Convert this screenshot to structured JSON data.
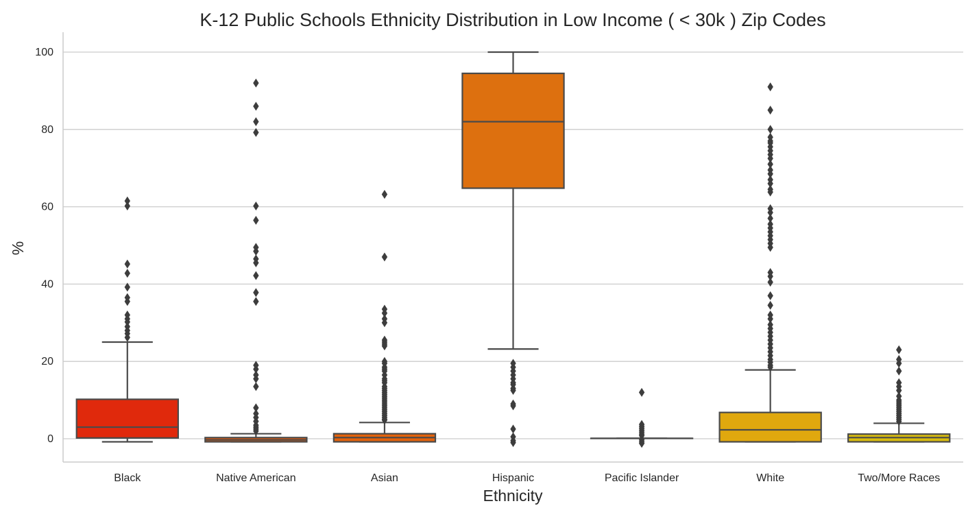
{
  "chart_data": {
    "type": "box",
    "title": "K-12 Public Schools Ethnicity Distribution in Low Income ( < 30k ) Zip Codes",
    "xlabel": "Ethnicity",
    "ylabel": "%",
    "ylim": [
      -6,
      105
    ],
    "yticks": [
      0,
      20,
      40,
      60,
      80,
      100
    ],
    "grid": "horizontal",
    "categories": [
      "Black",
      "Native American",
      "Asian",
      "Hispanic",
      "Pacific Islander",
      "White",
      "Two/More Races"
    ],
    "colors": [
      "#e0290c",
      "#e05a0c",
      "#e3620c",
      "#dd700f",
      "#e08a10",
      "#e0a80e",
      "#d8bc0e"
    ],
    "boxes": [
      {
        "category": "Black",
        "whisker_low": -0.8,
        "q1": 0.2,
        "median": 3.0,
        "q3": 10.2,
        "whisker_high": 25.0,
        "outliers": [
          61.5,
          60.2,
          45.2,
          42.8,
          39.2,
          36.5,
          35.5,
          32.0,
          31.0,
          30.2,
          29.0,
          28.0,
          27.2,
          26.2
        ]
      },
      {
        "category": "Native American",
        "whisker_low": -0.8,
        "q1": -0.8,
        "median": -0.3,
        "q3": 0.3,
        "whisker_high": 1.3,
        "outliers": [
          92.0,
          86.0,
          82.0,
          79.2,
          60.2,
          56.5,
          49.5,
          48.5,
          46.5,
          45.5,
          42.2,
          37.8,
          35.5,
          19.0,
          18.0,
          16.5,
          15.5,
          13.5,
          8.0,
          6.5,
          5.5,
          4.5,
          3.5,
          3.0,
          2.5,
          2.0
        ]
      },
      {
        "category": "Asian",
        "whisker_low": -0.8,
        "q1": -0.8,
        "median": 0.3,
        "q3": 1.3,
        "whisker_high": 4.2,
        "outliers": [
          63.2,
          47.0,
          33.5,
          32.5,
          31.0,
          30.0,
          25.5,
          25.0,
          24.5,
          24.0,
          20.0,
          19.5,
          18.5,
          18.0,
          17.5,
          16.5,
          15.5,
          15.0,
          14.5,
          13.5,
          13.0,
          12.5,
          12.0,
          11.5,
          11.0,
          10.5,
          10.0,
          9.5,
          9.0,
          8.5,
          8.0,
          7.5,
          7.0,
          6.5,
          6.0,
          5.5,
          5.0,
          4.8
        ]
      },
      {
        "category": "Hispanic",
        "whisker_low": 23.2,
        "q1": 64.8,
        "median": 82.0,
        "q3": 94.5,
        "whisker_high": 100.0,
        "outliers": [
          19.5,
          18.5,
          17.5,
          16.5,
          15.5,
          14.5,
          14.0,
          13.0,
          12.5,
          9.0,
          8.5,
          2.5,
          0.5,
          -0.5,
          -1.0
        ]
      },
      {
        "category": "Pacific Islander",
        "whisker_low": 0.1,
        "q1": 0.1,
        "median": 0.1,
        "q3": 0.1,
        "whisker_high": 0.1,
        "outliers": [
          12.0,
          3.7,
          3.2,
          2.7,
          2.2,
          1.7,
          1.2,
          0.8,
          -0.3,
          -0.8,
          -1.2
        ]
      },
      {
        "category": "White",
        "whisker_low": -0.8,
        "q1": -0.8,
        "median": 2.3,
        "q3": 6.8,
        "whisker_high": 17.8,
        "outliers": [
          91.0,
          85.0,
          80.0,
          78.0,
          77.0,
          76.5,
          75.5,
          74.5,
          73.5,
          72.5,
          71.0,
          69.5,
          68.5,
          67.0,
          66.0,
          64.5,
          63.8,
          59.5,
          58.5,
          57.0,
          55.5,
          54.5,
          53.5,
          52.5,
          51.5,
          50.5,
          49.5,
          43.0,
          42.0,
          40.5,
          37.0,
          34.5,
          32.0,
          31.0,
          29.5,
          28.5,
          27.5,
          26.5,
          25.5,
          24.5,
          23.5,
          22.5,
          21.5,
          20.5,
          19.8,
          19.0,
          18.5
        ]
      },
      {
        "category": "Two/More Races",
        "whisker_low": -0.8,
        "q1": -0.8,
        "median": 0.3,
        "q3": 1.2,
        "whisker_high": 4.0,
        "outliers": [
          23.0,
          20.5,
          19.5,
          17.5,
          14.5,
          13.5,
          12.5,
          11.0,
          10.0,
          9.5,
          9.0,
          8.5,
          8.0,
          7.5,
          7.0,
          6.5,
          6.0,
          5.5,
          5.0,
          4.5
        ]
      }
    ]
  }
}
